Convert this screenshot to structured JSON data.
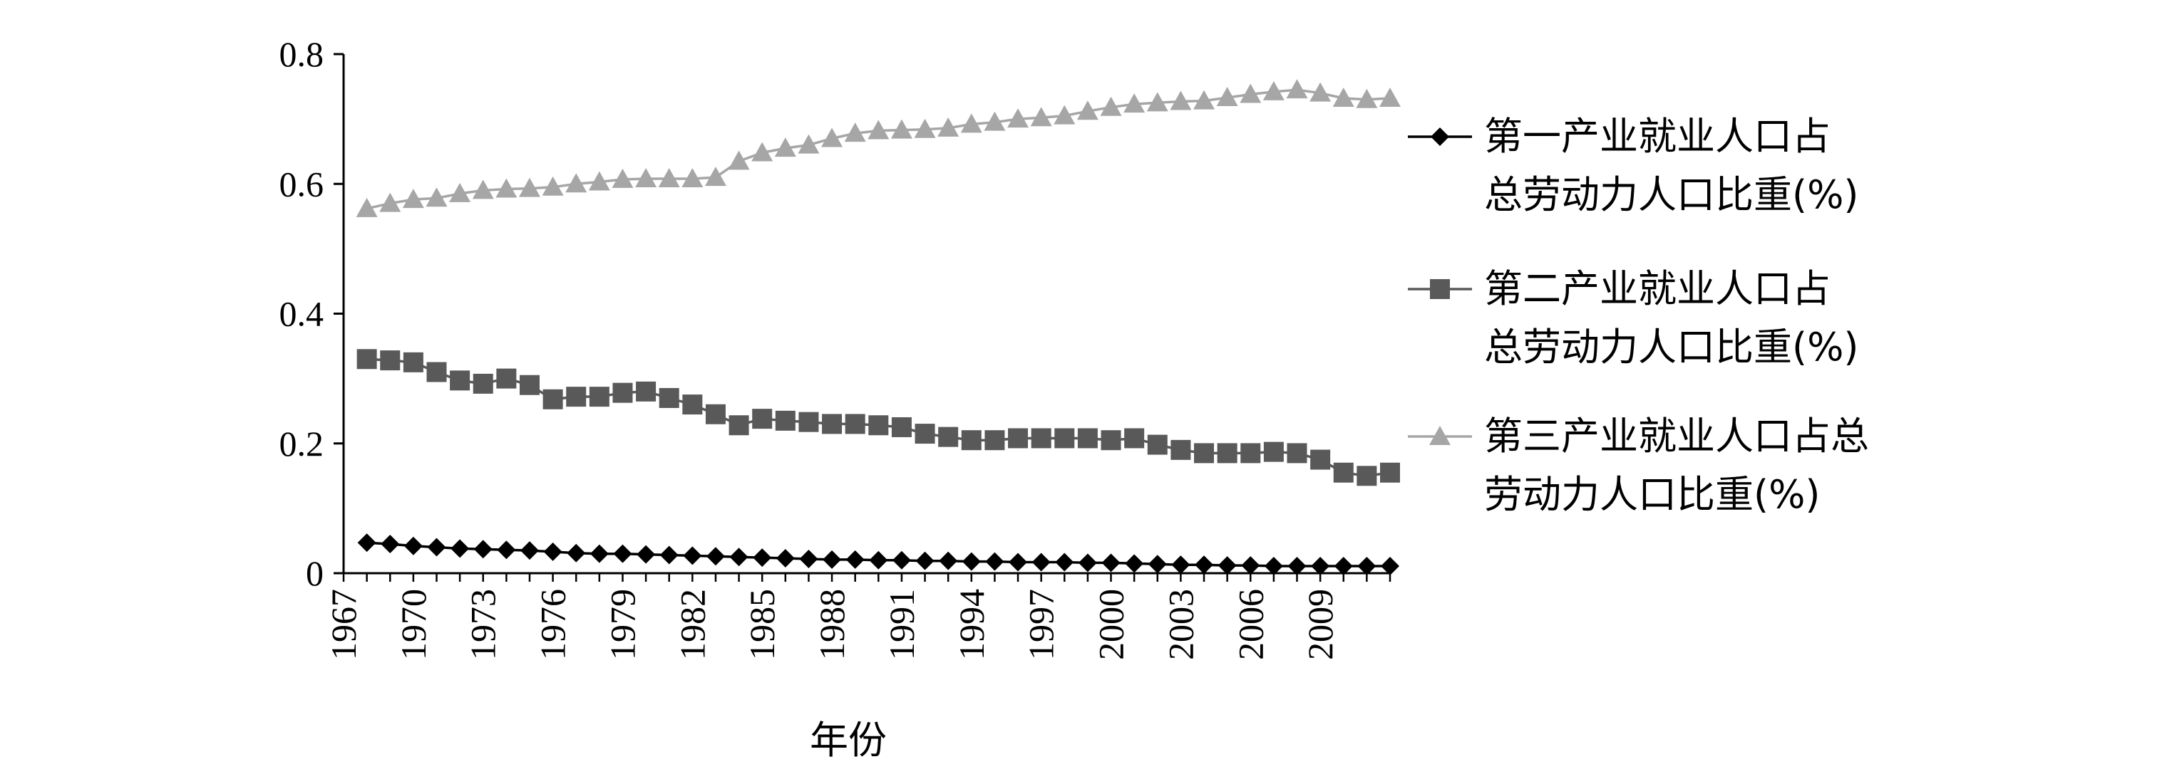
{
  "chart_data": {
    "type": "line",
    "title": "",
    "xlabel": "年份",
    "ylabel": "",
    "ylim": [
      0,
      0.8
    ],
    "y_ticks": [
      "0",
      "0.2",
      "0.4",
      "0.6",
      "0.8"
    ],
    "x_range": [
      1967,
      2012
    ],
    "x_tick_labels": [
      "1967",
      "1970",
      "1973",
      "1976",
      "1979",
      "1982",
      "1985",
      "1988",
      "1991",
      "1994",
      "1997",
      "2000",
      "2003",
      "2006",
      "2009"
    ],
    "grid": false,
    "legend_position": "right",
    "x": [
      1968,
      1969,
      1970,
      1971,
      1972,
      1973,
      1974,
      1975,
      1976,
      1977,
      1978,
      1979,
      1980,
      1981,
      1982,
      1983,
      1984,
      1985,
      1986,
      1987,
      1988,
      1989,
      1990,
      1991,
      1992,
      1993,
      1994,
      1995,
      1996,
      1997,
      1998,
      1999,
      2000,
      2001,
      2002,
      2003,
      2004,
      2005,
      2006,
      2007,
      2008,
      2009,
      2010,
      2011,
      2012
    ],
    "series": [
      {
        "name": "第一产业就业人口占总劳动力人口比重(%)",
        "legend_lines": [
          "第一产业就业人口占",
          "总劳动力人口比重(%)"
        ],
        "marker": "diamond",
        "color": "#000000",
        "values": [
          0.047,
          0.045,
          0.042,
          0.04,
          0.038,
          0.037,
          0.036,
          0.035,
          0.033,
          0.031,
          0.03,
          0.03,
          0.029,
          0.028,
          0.027,
          0.026,
          0.025,
          0.024,
          0.023,
          0.022,
          0.021,
          0.021,
          0.02,
          0.02,
          0.019,
          0.019,
          0.018,
          0.018,
          0.017,
          0.017,
          0.017,
          0.016,
          0.016,
          0.015,
          0.014,
          0.013,
          0.013,
          0.012,
          0.012,
          0.011,
          0.011,
          0.011,
          0.011,
          0.011,
          0.011
        ]
      },
      {
        "name": "第二产业就业人口占总劳动力人口比重(%)",
        "legend_lines": [
          "第二产业就业人口占",
          "总劳动力人口比重(%)"
        ],
        "marker": "square",
        "color": "#595959",
        "values": [
          0.33,
          0.328,
          0.325,
          0.31,
          0.297,
          0.292,
          0.3,
          0.29,
          0.268,
          0.272,
          0.272,
          0.278,
          0.28,
          0.27,
          0.26,
          0.245,
          0.228,
          0.238,
          0.235,
          0.233,
          0.23,
          0.23,
          0.228,
          0.225,
          0.215,
          0.21,
          0.205,
          0.205,
          0.208,
          0.208,
          0.208,
          0.208,
          0.205,
          0.208,
          0.198,
          0.19,
          0.185,
          0.185,
          0.185,
          0.187,
          0.185,
          0.175,
          0.155,
          0.15,
          0.155
        ]
      },
      {
        "name": "第三产业就业人口占总劳动力人口比重(%)",
        "legend_lines": [
          "第三产业就业人口占总",
          "劳动力人口比重(%)"
        ],
        "marker": "triangle",
        "color": "#a6a6a6",
        "values": [
          0.562,
          0.57,
          0.576,
          0.578,
          0.585,
          0.59,
          0.592,
          0.593,
          0.595,
          0.6,
          0.603,
          0.607,
          0.608,
          0.608,
          0.608,
          0.61,
          0.635,
          0.648,
          0.655,
          0.66,
          0.67,
          0.678,
          0.682,
          0.683,
          0.684,
          0.686,
          0.692,
          0.695,
          0.7,
          0.702,
          0.705,
          0.712,
          0.718,
          0.723,
          0.725,
          0.727,
          0.728,
          0.733,
          0.738,
          0.742,
          0.745,
          0.74,
          0.732,
          0.73,
          0.732
        ]
      }
    ]
  }
}
